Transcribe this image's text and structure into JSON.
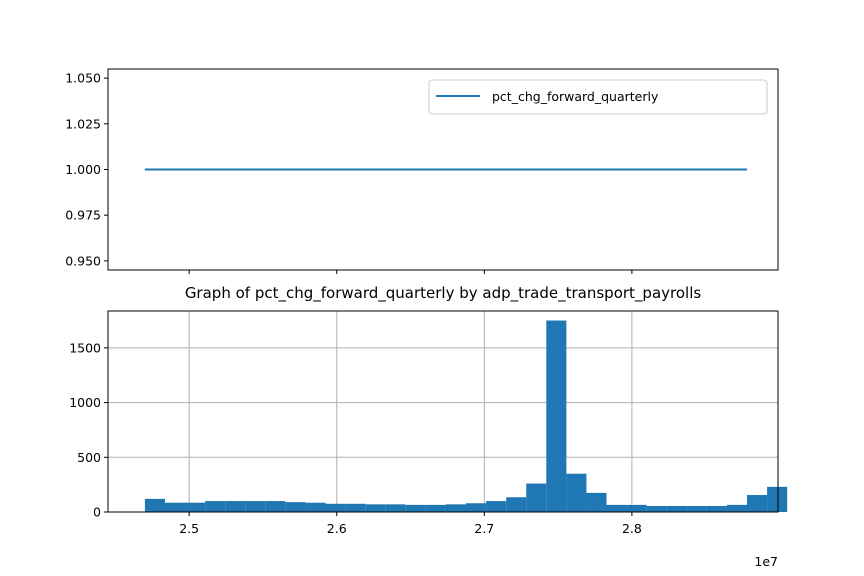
{
  "chart_data": [
    {
      "type": "line",
      "x_range": [
        24700000,
        28780000
      ],
      "series": [
        {
          "name": "pct_chg_forward_quarterly",
          "x": [
            24700000,
            28780000
          ],
          "values": [
            1.0,
            1.0
          ],
          "color": "#1f77b4"
        }
      ],
      "ylim": [
        0.945,
        1.055
      ],
      "yticks": [
        0.95,
        0.975,
        1.0,
        1.025,
        1.05
      ],
      "ytick_labels": [
        "0.950",
        "0.975",
        "1.000",
        "1.025",
        "1.050"
      ],
      "xticks": [
        25000000,
        26000000,
        27000000,
        28000000
      ],
      "grid": false,
      "legend": "top-right"
    },
    {
      "type": "bar",
      "title": "Graph of pct_chg_forward_quarterly by adp_trade_transport_payrolls",
      "bin_start": 24700000,
      "bin_width": 136000,
      "values": [
        120,
        85,
        85,
        100,
        100,
        100,
        100,
        90,
        85,
        75,
        75,
        70,
        70,
        65,
        65,
        70,
        80,
        100,
        135,
        260,
        1750,
        350,
        175,
        65,
        65,
        55,
        55,
        55,
        55,
        65,
        155,
        230
      ],
      "color": "#1f77b4",
      "xlim": [
        24450000,
        28990000
      ],
      "ylim": [
        0,
        1837
      ],
      "yticks": [
        0,
        500,
        1000,
        1500
      ],
      "ytick_labels": [
        "0",
        "500",
        "1000",
        "1500"
      ],
      "xticks": [
        25000000,
        26000000,
        27000000,
        28000000
      ],
      "xtick_labels": [
        "2.5",
        "2.6",
        "2.7",
        "2.8"
      ],
      "x_offset_label": "1e7",
      "grid": true
    }
  ]
}
